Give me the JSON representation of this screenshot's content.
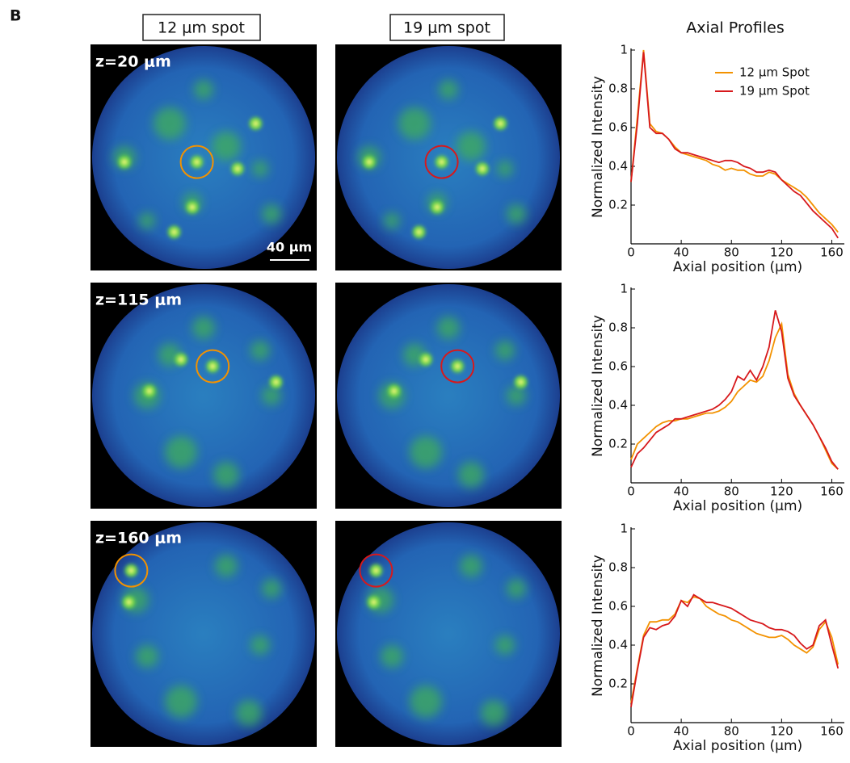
{
  "panel_label": "B",
  "column_headers": [
    "12 μm spot",
    "19 μm spot"
  ],
  "profiles_title": "Axial Profiles",
  "images": [
    {
      "z_label": "z=20 μm"
    },
    {
      "z_label": "z=115 μm"
    },
    {
      "z_label": "z=160 μm"
    }
  ],
  "scale_bar_label": "40 μm",
  "chart_data": [
    {
      "type": "line",
      "xlabel": "Axial position (μm)",
      "ylabel": "Normalized Intensity",
      "x": [
        0,
        5,
        10,
        15,
        20,
        25,
        30,
        35,
        40,
        45,
        50,
        55,
        60,
        65,
        70,
        75,
        80,
        85,
        90,
        95,
        100,
        105,
        110,
        115,
        120,
        125,
        130,
        135,
        140,
        145,
        150,
        155,
        160,
        165
      ],
      "series": [
        {
          "name": "12 μm Spot",
          "color": "#f39200",
          "values": [
            0.32,
            0.65,
            1.0,
            0.62,
            0.58,
            0.57,
            0.54,
            0.5,
            0.47,
            0.46,
            0.45,
            0.44,
            0.43,
            0.41,
            0.4,
            0.38,
            0.39,
            0.38,
            0.38,
            0.36,
            0.35,
            0.35,
            0.37,
            0.36,
            0.33,
            0.31,
            0.29,
            0.27,
            0.24,
            0.2,
            0.16,
            0.13,
            0.1,
            0.06
          ]
        },
        {
          "name": "19 μm Spot",
          "color": "#d7191c",
          "values": [
            0.32,
            0.62,
            0.99,
            0.6,
            0.57,
            0.57,
            0.54,
            0.49,
            0.47,
            0.47,
            0.46,
            0.45,
            0.44,
            0.43,
            0.42,
            0.43,
            0.43,
            0.42,
            0.4,
            0.39,
            0.37,
            0.37,
            0.38,
            0.37,
            0.33,
            0.3,
            0.27,
            0.25,
            0.21,
            0.17,
            0.14,
            0.11,
            0.08,
            0.03
          ]
        }
      ],
      "xlim": [
        0,
        170
      ],
      "ylim": [
        0,
        1
      ],
      "xticks": [
        0,
        40,
        80,
        120,
        160
      ],
      "yticks": [
        0.2,
        0.4,
        0.6,
        0.8,
        1
      ],
      "legend": "upper right"
    },
    {
      "type": "line",
      "xlabel": "Axial position (μm)",
      "ylabel": "Normalized Intensity",
      "x": [
        0,
        5,
        10,
        15,
        20,
        25,
        30,
        35,
        40,
        45,
        50,
        55,
        60,
        65,
        70,
        75,
        80,
        85,
        90,
        95,
        100,
        105,
        110,
        115,
        120,
        125,
        130,
        135,
        140,
        145,
        150,
        155,
        160,
        165
      ],
      "series": [
        {
          "color": "#f39200",
          "values": [
            0.12,
            0.2,
            0.23,
            0.26,
            0.29,
            0.31,
            0.32,
            0.32,
            0.33,
            0.33,
            0.34,
            0.35,
            0.36,
            0.36,
            0.37,
            0.39,
            0.42,
            0.47,
            0.5,
            0.53,
            0.52,
            0.55,
            0.63,
            0.75,
            0.82,
            0.56,
            0.46,
            0.4,
            0.35,
            0.3,
            0.24,
            0.17,
            0.1,
            0.07
          ]
        },
        {
          "color": "#d7191c",
          "values": [
            0.08,
            0.15,
            0.18,
            0.22,
            0.26,
            0.28,
            0.3,
            0.33,
            0.33,
            0.34,
            0.35,
            0.36,
            0.37,
            0.38,
            0.4,
            0.43,
            0.47,
            0.55,
            0.53,
            0.58,
            0.53,
            0.6,
            0.7,
            0.89,
            0.78,
            0.54,
            0.45,
            0.4,
            0.35,
            0.3,
            0.24,
            0.18,
            0.11,
            0.07
          ]
        }
      ],
      "xlim": [
        0,
        170
      ],
      "ylim": [
        0,
        1
      ],
      "xticks": [
        0,
        40,
        80,
        120,
        160
      ],
      "yticks": [
        0.2,
        0.4,
        0.6,
        0.8,
        1
      ]
    },
    {
      "type": "line",
      "xlabel": "Axial position (μm)",
      "ylabel": "Normalized Intensity",
      "x": [
        0,
        5,
        10,
        15,
        20,
        25,
        30,
        35,
        40,
        45,
        50,
        55,
        60,
        65,
        70,
        75,
        80,
        85,
        90,
        95,
        100,
        105,
        110,
        115,
        120,
        125,
        130,
        135,
        140,
        145,
        150,
        155,
        160,
        165
      ],
      "series": [
        {
          "color": "#f39200",
          "values": [
            0.1,
            0.28,
            0.45,
            0.52,
            0.52,
            0.53,
            0.53,
            0.56,
            0.63,
            0.62,
            0.65,
            0.64,
            0.6,
            0.58,
            0.56,
            0.55,
            0.53,
            0.52,
            0.5,
            0.48,
            0.46,
            0.45,
            0.44,
            0.44,
            0.45,
            0.43,
            0.4,
            0.38,
            0.36,
            0.39,
            0.48,
            0.52,
            0.44,
            0.3
          ]
        },
        {
          "color": "#d7191c",
          "values": [
            0.08,
            0.27,
            0.44,
            0.49,
            0.48,
            0.5,
            0.51,
            0.55,
            0.63,
            0.6,
            0.66,
            0.64,
            0.62,
            0.62,
            0.61,
            0.6,
            0.59,
            0.57,
            0.55,
            0.53,
            0.52,
            0.51,
            0.49,
            0.48,
            0.48,
            0.47,
            0.45,
            0.41,
            0.38,
            0.4,
            0.5,
            0.53,
            0.4,
            0.28
          ]
        }
      ],
      "xlim": [
        0,
        170
      ],
      "ylim": [
        0,
        1
      ],
      "xticks": [
        0,
        40,
        80,
        120,
        160
      ],
      "yticks": [
        0.2,
        0.4,
        0.6,
        0.8,
        1
      ]
    }
  ]
}
